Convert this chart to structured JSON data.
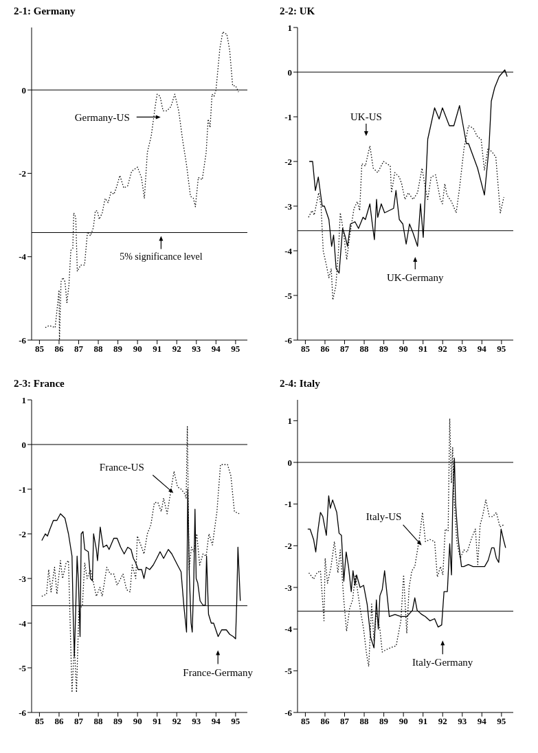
{
  "chart_data": [
    {
      "type": "line",
      "title": "2-1: Germany",
      "xlim": [
        84.6,
        95.6
      ],
      "xticks": [
        85,
        86,
        87,
        88,
        89,
        90,
        91,
        92,
        93,
        94,
        95
      ],
      "ylim": [
        -6,
        1.5
      ],
      "yticks": [
        -6,
        -4,
        -2,
        0
      ],
      "ref_lines": [
        {
          "axis": "y",
          "value": 0,
          "color": "#000000"
        },
        {
          "axis": "y",
          "value": -3.42,
          "label": "5% significance level",
          "color": "#000000"
        }
      ],
      "series": [
        {
          "name": "Germany-US",
          "color": "#000000",
          "line_style": "dotted",
          "x": [
            85.3,
            85.5,
            85.8,
            86.0,
            86.02,
            86.05,
            86.1,
            86.2,
            86.3,
            86.4,
            86.5,
            86.6,
            86.7,
            86.75,
            86.85,
            86.93,
            87.1,
            87.3,
            87.45,
            87.6,
            87.75,
            87.85,
            87.95,
            88.05,
            88.2,
            88.35,
            88.5,
            88.65,
            88.8,
            88.95,
            89.1,
            89.3,
            89.5,
            89.7,
            90.0,
            90.2,
            90.35,
            90.5,
            90.7,
            90.9,
            91.0,
            91.15,
            91.3,
            91.5,
            91.7,
            91.9,
            92.1,
            92.3,
            92.5,
            92.7,
            92.85,
            92.95,
            93.1,
            93.3,
            93.5,
            93.6,
            93.7,
            93.8,
            93.9,
            94.0,
            94.2,
            94.35,
            94.45,
            94.55,
            94.7,
            94.85,
            95.0,
            95.15
          ],
          "values": [
            -5.7,
            -5.65,
            -5.7,
            -4.8,
            -6.0,
            -5.5,
            -4.6,
            -4.5,
            -4.6,
            -5.1,
            -4.7,
            -3.85,
            -3.8,
            -2.95,
            -3.05,
            -4.35,
            -4.2,
            -4.2,
            -3.4,
            -3.5,
            -3.3,
            -2.9,
            -2.9,
            -3.1,
            -2.95,
            -2.6,
            -2.7,
            -2.45,
            -2.5,
            -2.3,
            -2.05,
            -2.35,
            -2.3,
            -1.95,
            -1.85,
            -2.1,
            -2.6,
            -1.5,
            -1.1,
            -0.4,
            -0.1,
            -0.15,
            -0.5,
            -0.5,
            -0.4,
            -0.1,
            -0.5,
            -1.2,
            -1.8,
            -2.55,
            -2.6,
            -2.8,
            -2.1,
            -2.15,
            -1.5,
            -0.7,
            -0.9,
            -0.1,
            -0.15,
            0.0,
            1.0,
            1.4,
            1.35,
            1.35,
            0.95,
            0.1,
            0.1,
            -0.05
          ]
        }
      ]
    },
    {
      "type": "line",
      "title": "2-2: UK",
      "xlim": [
        84.6,
        95.6
      ],
      "xticks": [
        85,
        86,
        87,
        88,
        89,
        90,
        91,
        92,
        93,
        94,
        95
      ],
      "ylim": [
        -6,
        1
      ],
      "yticks": [
        -6,
        -5,
        -4,
        -3,
        -2,
        -1,
        0,
        1
      ],
      "ref_lines": [
        {
          "axis": "y",
          "value": 0,
          "color": "#000000"
        },
        {
          "axis": "y",
          "value": -3.55,
          "color": "#000000"
        }
      ],
      "series": [
        {
          "name": "UK-Germany",
          "color": "#000000",
          "line_style": "solid",
          "x": [
            85.2,
            85.37,
            85.51,
            85.66,
            85.86,
            85.97,
            86.2,
            86.34,
            86.44,
            86.57,
            86.72,
            86.9,
            87.01,
            87.15,
            87.3,
            87.53,
            87.71,
            87.94,
            88.06,
            88.29,
            88.4,
            88.52,
            88.63,
            88.69,
            88.87,
            89.04,
            89.5,
            89.62,
            89.79,
            89.97,
            90.14,
            90.31,
            90.49,
            90.72,
            90.87,
            91.01,
            91.24,
            91.59,
            91.82,
            91.99,
            92.34,
            92.57,
            92.86,
            93.21,
            93.32,
            93.78,
            94.13,
            94.36,
            94.48,
            94.65,
            94.88,
            95.17,
            95.29
          ],
          "values": [
            -2.0,
            -2.0,
            -2.65,
            -2.35,
            -3.0,
            -3.0,
            -3.3,
            -3.9,
            -3.65,
            -4.4,
            -4.5,
            -3.5,
            -3.65,
            -3.9,
            -3.4,
            -3.35,
            -3.5,
            -3.25,
            -3.3,
            -2.95,
            -3.35,
            -3.75,
            -2.85,
            -3.25,
            -2.95,
            -3.15,
            -3.05,
            -2.65,
            -3.3,
            -3.4,
            -3.85,
            -3.4,
            -3.6,
            -3.9,
            -2.95,
            -3.7,
            -1.5,
            -0.8,
            -1.05,
            -0.8,
            -1.2,
            -1.2,
            -0.75,
            -1.6,
            -1.6,
            -2.15,
            -2.75,
            -1.7,
            -0.65,
            -0.35,
            -0.1,
            0.05,
            -0.1
          ]
        },
        {
          "name": "UK-US",
          "color": "#000000",
          "line_style": "dotted",
          "x": [
            85.16,
            85.34,
            85.45,
            85.68,
            85.8,
            85.91,
            86.06,
            86.2,
            86.32,
            86.4,
            86.55,
            86.69,
            86.78,
            86.92,
            87.11,
            87.25,
            87.48,
            87.65,
            87.77,
            87.88,
            88.06,
            88.29,
            88.46,
            88.69,
            88.98,
            89.33,
            89.39,
            89.56,
            89.79,
            89.91,
            90.08,
            90.25,
            90.49,
            90.72,
            90.95,
            91.12,
            91.24,
            91.41,
            91.64,
            91.88,
            91.99,
            92.11,
            92.22,
            92.45,
            92.69,
            92.86,
            93.09,
            93.32,
            93.55,
            93.78,
            93.96,
            94.13,
            94.31,
            94.54,
            94.71,
            94.94,
            95.12
          ],
          "values": [
            -3.25,
            -3.1,
            -3.2,
            -2.7,
            -3.0,
            -4.0,
            -4.3,
            -4.6,
            -4.4,
            -5.1,
            -4.8,
            -4.0,
            -3.15,
            -3.5,
            -4.2,
            -3.7,
            -3.05,
            -2.9,
            -3.1,
            -2.05,
            -2.1,
            -1.65,
            -2.15,
            -2.25,
            -2.0,
            -2.1,
            -2.7,
            -2.25,
            -2.35,
            -2.5,
            -2.85,
            -2.7,
            -2.85,
            -2.7,
            -2.15,
            -2.6,
            -2.85,
            -2.35,
            -2.3,
            -2.85,
            -2.95,
            -2.5,
            -2.75,
            -2.9,
            -3.15,
            -2.6,
            -1.7,
            -1.2,
            -1.25,
            -1.45,
            -1.5,
            -2.2,
            -1.7,
            -1.8,
            -1.9,
            -3.15,
            -2.8
          ]
        }
      ]
    },
    {
      "type": "line",
      "title": "2-3: France",
      "xlim": [
        84.6,
        95.6
      ],
      "xticks": [
        85,
        86,
        87,
        88,
        89,
        90,
        91,
        92,
        93,
        94,
        95
      ],
      "ylim": [
        -6,
        1
      ],
      "yticks": [
        -6,
        -5,
        -4,
        -3,
        -2,
        -1,
        0,
        1
      ],
      "ref_lines": [
        {
          "axis": "y",
          "value": 0,
          "color": "#000000"
        },
        {
          "axis": "y",
          "value": -3.61,
          "color": "#000000"
        }
      ],
      "series": [
        {
          "name": "France-Germany",
          "color": "#000000",
          "line_style": "solid",
          "x": [
            85.12,
            85.3,
            85.41,
            85.53,
            85.71,
            85.89,
            86.07,
            86.3,
            86.48,
            86.66,
            86.72,
            86.78,
            86.83,
            86.92,
            86.99,
            87.07,
            87.13,
            87.22,
            87.31,
            87.49,
            87.6,
            87.7,
            87.76,
            87.9,
            87.96,
            88.1,
            88.25,
            88.43,
            88.55,
            88.79,
            88.96,
            89.14,
            89.32,
            89.5,
            89.67,
            89.79,
            89.91,
            90.03,
            90.21,
            90.33,
            90.44,
            90.62,
            90.8,
            90.98,
            91.15,
            91.33,
            91.57,
            91.75,
            92.04,
            92.22,
            92.36,
            92.5,
            92.56,
            92.64,
            92.73,
            92.79,
            92.87,
            92.93,
            92.99,
            93.07,
            93.19,
            93.34,
            93.46,
            93.52,
            93.62,
            93.76,
            93.88,
            94.11,
            94.29,
            94.53,
            94.7,
            94.88,
            95.0,
            95.06,
            95.12,
            95.24
          ],
          "values": [
            -2.15,
            -2.0,
            -2.05,
            -1.9,
            -1.7,
            -1.7,
            -1.55,
            -1.65,
            -2.0,
            -2.5,
            -3.8,
            -4.75,
            -4.0,
            -2.5,
            -3.1,
            -4.3,
            -2.0,
            -1.95,
            -2.35,
            -2.4,
            -3.0,
            -3.05,
            -2.0,
            -2.35,
            -2.6,
            -1.85,
            -2.3,
            -2.25,
            -2.35,
            -2.1,
            -2.1,
            -2.3,
            -2.45,
            -2.3,
            -2.35,
            -2.55,
            -2.65,
            -2.8,
            -2.8,
            -3.0,
            -2.75,
            -2.8,
            -2.7,
            -2.55,
            -2.4,
            -2.55,
            -2.35,
            -2.45,
            -2.7,
            -2.85,
            -3.6,
            -4.2,
            -1.0,
            -2.9,
            -4.0,
            -4.2,
            -3.0,
            -1.45,
            -3.0,
            -3.1,
            -3.5,
            -3.6,
            -3.6,
            -2.5,
            -3.8,
            -4.0,
            -4.0,
            -4.3,
            -4.15,
            -4.15,
            -4.25,
            -4.3,
            -4.35,
            -3.5,
            -2.3,
            -3.5
          ]
        },
        {
          "name": "France-US",
          "color": "#000000",
          "line_style": "dotted",
          "x": [
            85.12,
            85.36,
            85.47,
            85.59,
            85.77,
            85.89,
            86.07,
            86.18,
            86.36,
            86.48,
            86.66,
            86.78,
            86.89,
            87.01,
            87.19,
            87.31,
            87.43,
            87.6,
            87.78,
            87.9,
            88.08,
            88.2,
            88.43,
            88.61,
            88.79,
            88.96,
            89.26,
            89.44,
            89.62,
            89.73,
            89.91,
            89.99,
            90.21,
            90.33,
            90.5,
            90.68,
            90.86,
            91.04,
            91.21,
            91.33,
            91.51,
            91.75,
            91.86,
            92.04,
            92.22,
            92.4,
            92.48,
            92.54,
            92.63,
            92.75,
            92.87,
            93.02,
            93.17,
            93.34,
            93.5,
            93.64,
            93.82,
            94.05,
            94.23,
            94.41,
            94.59,
            94.76,
            94.94,
            95.18
          ],
          "values": [
            -3.4,
            -3.35,
            -2.8,
            -3.3,
            -2.75,
            -3.35,
            -2.6,
            -3.0,
            -2.65,
            -2.6,
            -5.55,
            -4.5,
            -5.55,
            -3.7,
            -3.6,
            -2.65,
            -3.0,
            -2.8,
            -3.15,
            -3.4,
            -3.2,
            -3.4,
            -2.75,
            -2.9,
            -2.9,
            -3.15,
            -2.9,
            -3.25,
            -3.3,
            -2.7,
            -3.0,
            -2.05,
            -2.3,
            -2.45,
            -2.0,
            -1.8,
            -1.3,
            -1.3,
            -1.5,
            -1.2,
            -1.55,
            -0.9,
            -0.6,
            -0.95,
            -1.0,
            -1.1,
            -1.2,
            0.4,
            -2.8,
            -2.3,
            -2.4,
            -2.0,
            -2.7,
            -2.45,
            -2.5,
            -2.0,
            -2.25,
            -1.5,
            -0.45,
            -0.45,
            -0.45,
            -0.7,
            -1.5,
            -1.55
          ]
        }
      ]
    },
    {
      "type": "line",
      "title": "2-4: Italy",
      "xlim": [
        84.6,
        95.6
      ],
      "xticks": [
        85,
        86,
        87,
        88,
        89,
        90,
        91,
        92,
        93,
        94,
        95
      ],
      "ylim": [
        -6,
        1.5
      ],
      "yticks": [
        -6,
        -5,
        -4,
        -3,
        -2,
        -1,
        0,
        1
      ],
      "ref_lines": [
        {
          "axis": "y",
          "value": 0,
          "color": "#000000"
        },
        {
          "axis": "y",
          "value": -3.57,
          "color": "#000000"
        }
      ],
      "series": [
        {
          "name": "Italy-Germany",
          "color": "#000000",
          "line_style": "solid",
          "x": [
            85.12,
            85.24,
            85.42,
            85.53,
            85.65,
            85.77,
            85.89,
            86.07,
            86.19,
            86.27,
            86.39,
            86.6,
            86.72,
            86.84,
            86.96,
            87.08,
            87.2,
            87.34,
            87.43,
            87.53,
            87.61,
            87.79,
            87.97,
            88.15,
            88.33,
            88.5,
            88.62,
            88.72,
            88.8,
            88.92,
            89.04,
            89.16,
            89.28,
            89.57,
            89.87,
            90.17,
            90.46,
            90.58,
            90.7,
            90.94,
            91.12,
            91.35,
            91.59,
            91.77,
            91.95,
            92.07,
            92.24,
            92.36,
            92.45,
            92.52,
            92.6,
            92.66,
            92.78,
            92.96,
            93.08,
            93.31,
            93.55,
            93.85,
            94.14,
            94.32,
            94.5,
            94.62,
            94.74,
            94.86,
            94.98,
            95.1,
            95.21
          ],
          "values": [
            -1.6,
            -1.6,
            -1.85,
            -2.15,
            -1.6,
            -1.2,
            -1.3,
            -1.75,
            -0.8,
            -1.1,
            -0.9,
            -1.2,
            -1.7,
            -1.75,
            -2.85,
            -2.15,
            -2.5,
            -3.1,
            -2.6,
            -2.95,
            -2.7,
            -3.0,
            -2.95,
            -3.4,
            -4.2,
            -4.45,
            -3.3,
            -4.0,
            -3.2,
            -3.05,
            -2.6,
            -3.15,
            -3.7,
            -3.65,
            -3.7,
            -3.7,
            -3.55,
            -3.25,
            -3.55,
            -3.65,
            -3.7,
            -3.8,
            -3.75,
            -3.95,
            -3.9,
            -3.1,
            -3.1,
            -1.95,
            -2.7,
            -0.8,
            0.1,
            -1.0,
            -1.8,
            -2.5,
            -2.5,
            -2.45,
            -2.5,
            -2.5,
            -2.5,
            -2.35,
            -2.05,
            -2.05,
            -2.3,
            -2.4,
            -1.6,
            -1.85,
            -2.05
          ]
        },
        {
          "name": "Italy-US",
          "color": "#000000",
          "line_style": "dotted",
          "x": [
            85.18,
            85.42,
            85.59,
            85.77,
            85.95,
            86.01,
            86.13,
            86.31,
            86.48,
            86.66,
            86.78,
            86.96,
            87.1,
            87.26,
            87.41,
            87.55,
            87.79,
            87.97,
            88.12,
            88.23,
            88.38,
            88.5,
            88.62,
            88.8,
            88.92,
            89.1,
            89.33,
            89.63,
            89.87,
            90.01,
            90.17,
            90.29,
            90.43,
            90.58,
            90.82,
            90.97,
            91.12,
            91.35,
            91.59,
            91.73,
            91.89,
            92.01,
            92.13,
            92.28,
            92.36,
            92.45,
            92.51,
            92.57,
            92.72,
            92.9,
            93.08,
            93.25,
            93.49,
            93.67,
            93.79,
            93.91,
            94.03,
            94.2,
            94.38,
            94.56,
            94.74,
            94.92,
            95.1
          ],
          "values": [
            -2.65,
            -2.8,
            -2.65,
            -2.6,
            -3.8,
            -2.3,
            -2.9,
            -2.5,
            -1.9,
            -2.65,
            -2.1,
            -3.3,
            -4.05,
            -3.5,
            -3.3,
            -2.7,
            -3.5,
            -4.0,
            -4.6,
            -4.9,
            -3.4,
            -4.3,
            -3.6,
            -4.0,
            -4.55,
            -4.5,
            -4.45,
            -4.4,
            -3.8,
            -2.7,
            -4.1,
            -3.0,
            -2.6,
            -2.5,
            -1.8,
            -1.2,
            -1.9,
            -1.85,
            -1.9,
            -2.75,
            -2.5,
            -2.7,
            -1.6,
            -1.65,
            1.05,
            -0.5,
            0.35,
            -0.8,
            -1.9,
            -2.3,
            -2.1,
            -2.15,
            -1.8,
            -1.6,
            -2.45,
            -1.5,
            -1.3,
            -0.9,
            -1.3,
            -1.3,
            -1.2,
            -1.55,
            -1.5
          ]
        }
      ]
    }
  ]
}
